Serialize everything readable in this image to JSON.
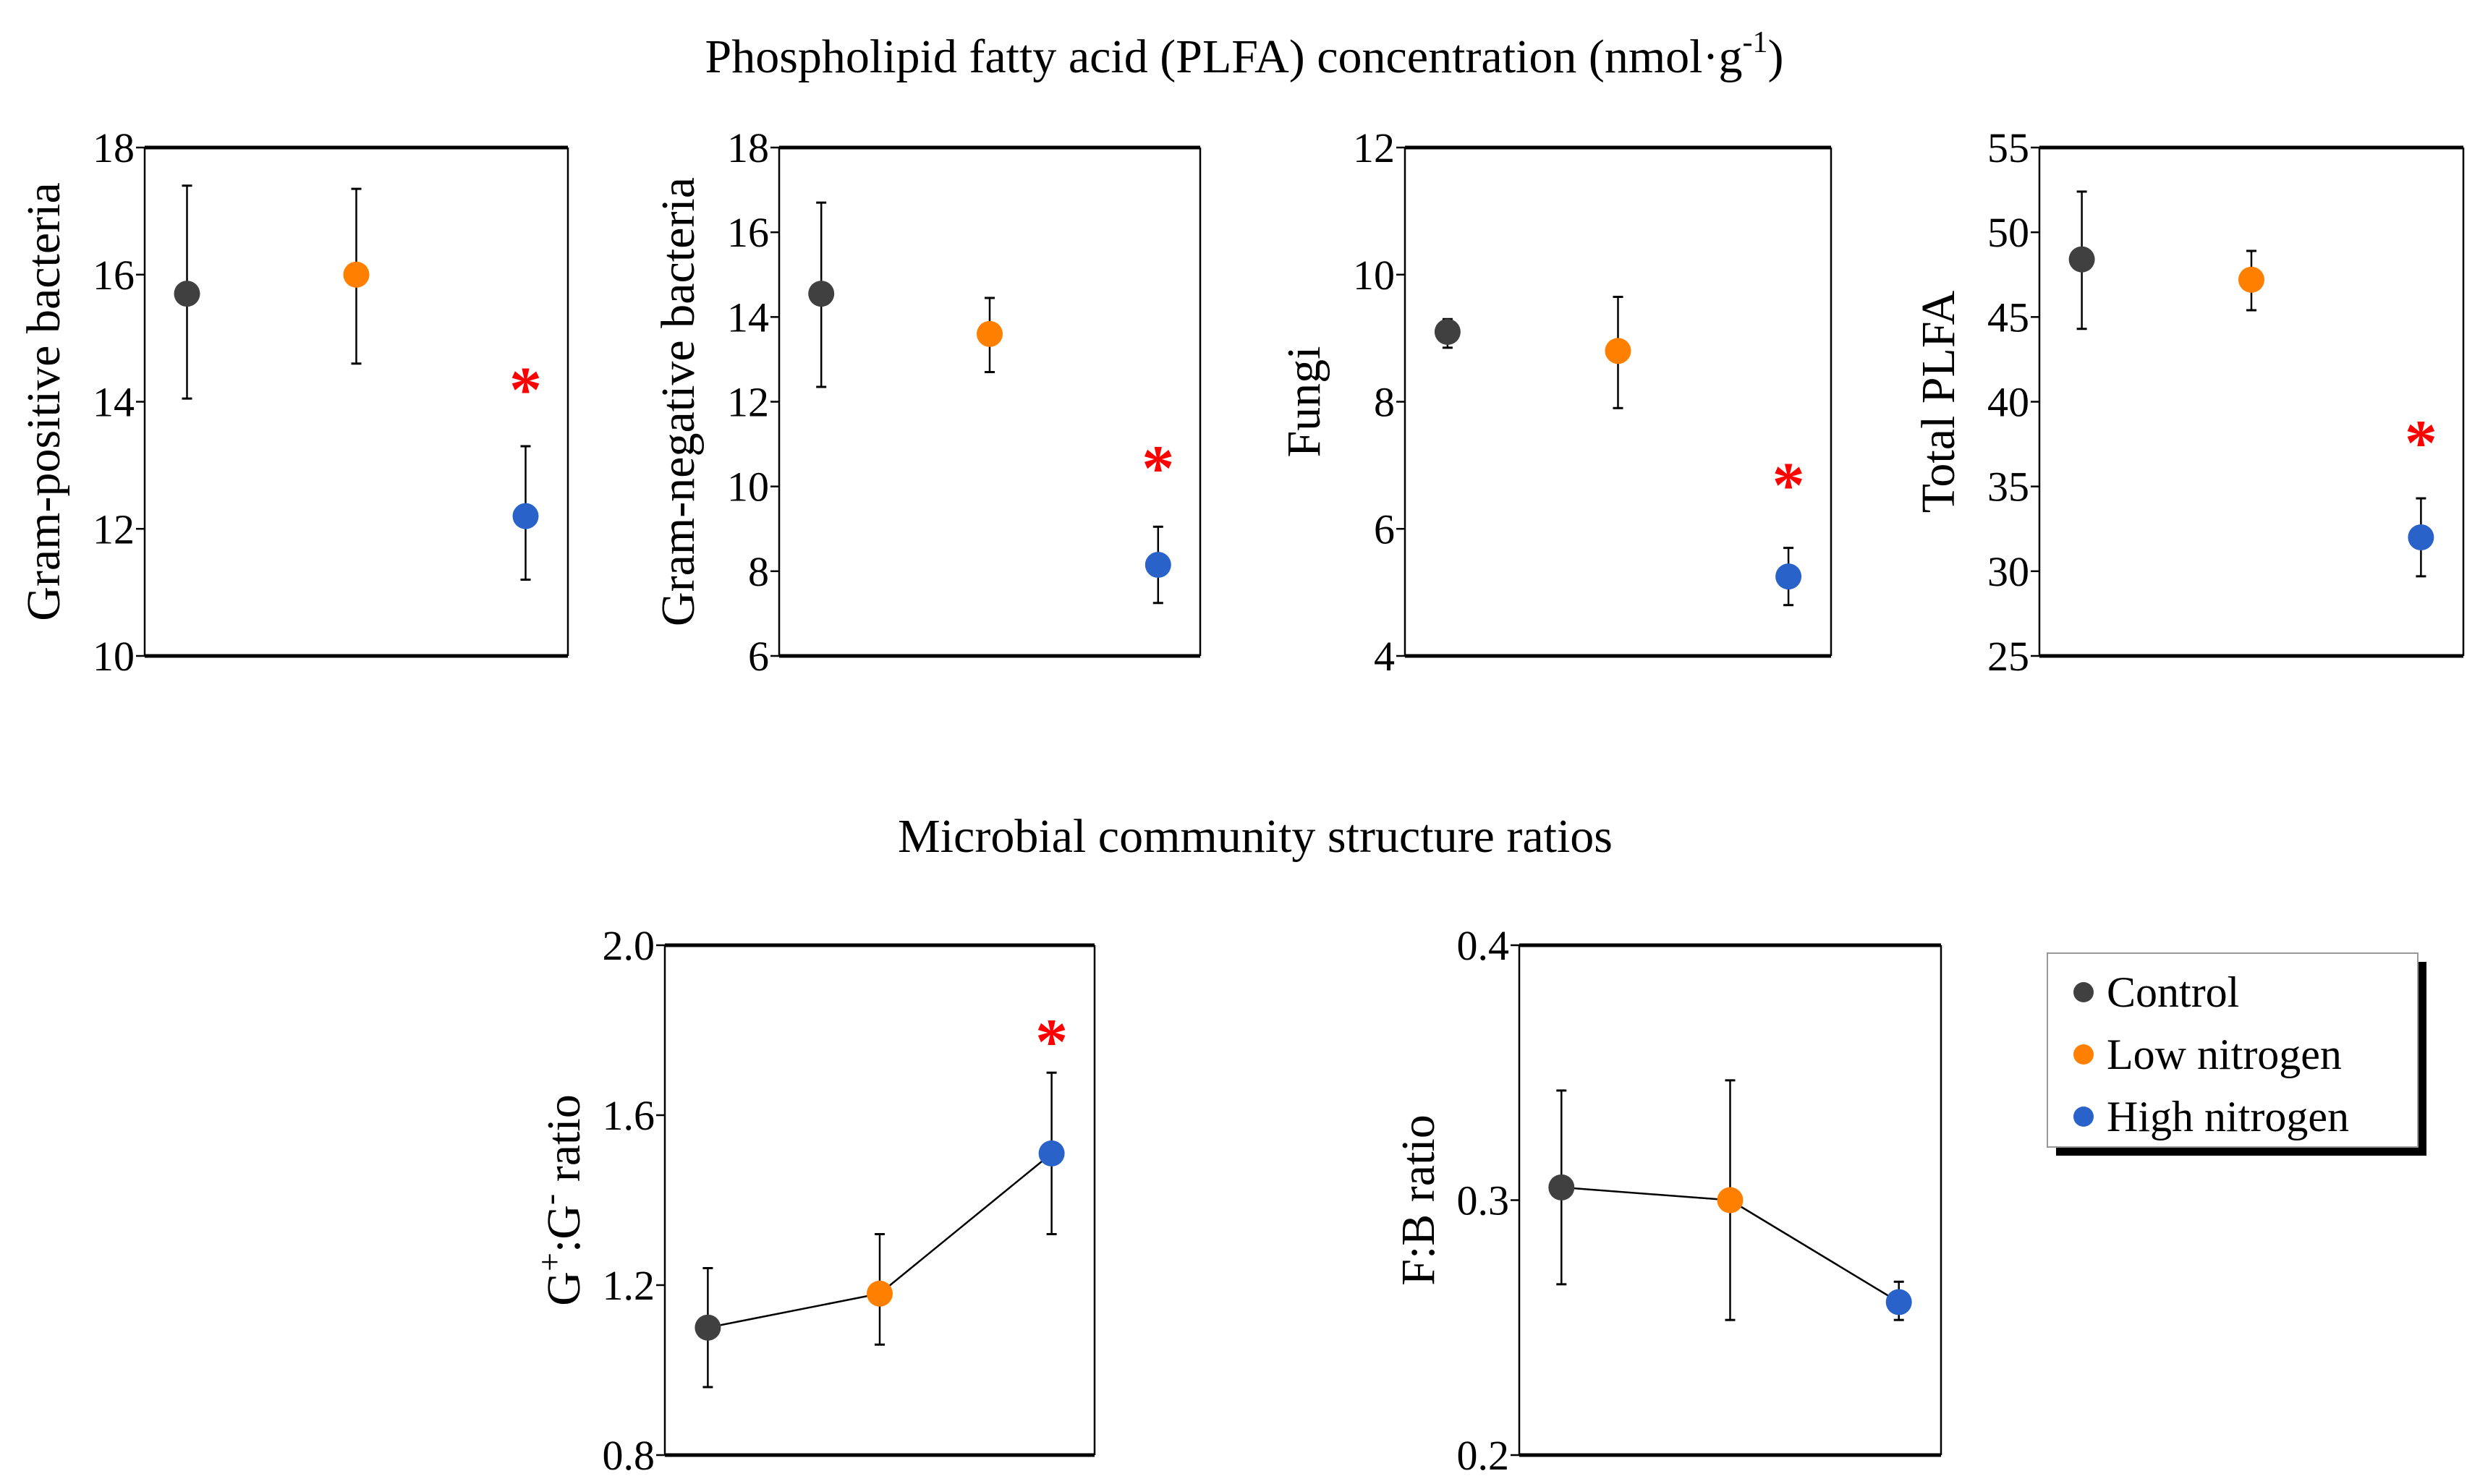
{
  "titles": {
    "top_main": "Phospholipid fatty acid (PLFA) concentration (nmol·g",
    "top_sup": "-1",
    "top_end": ")",
    "bottom": "Microbial community structure ratios"
  },
  "colors": {
    "Control": "#404040",
    "Low nitrogen": "#ff8000",
    "High nitrogen": "#2962c8",
    "significance": "#ff0000"
  },
  "legend": {
    "entries": [
      "Control",
      "Low nitrogen",
      "High nitrogen"
    ]
  },
  "chart_data": [
    {
      "type": "scatter",
      "ylabel": "Gram-positive bacteria",
      "ylim": [
        10,
        18
      ],
      "yticks": [
        "10",
        "12",
        "14",
        "16",
        "18"
      ],
      "groups": [
        "Control",
        "Low nitrogen",
        "High nitrogen"
      ],
      "values": [
        15.7,
        16.0,
        12.2
      ],
      "err_low": [
        14.05,
        14.6,
        11.2
      ],
      "err_high": [
        17.4,
        17.35,
        13.3
      ],
      "significant": [
        false,
        false,
        true
      ],
      "star_y": 14.3,
      "connected": false,
      "star": "*"
    },
    {
      "type": "scatter",
      "ylabel": "Gram-negative bacteria",
      "ylim": [
        6,
        18
      ],
      "yticks": [
        "6",
        "8",
        "10",
        "12",
        "14",
        "16",
        "18"
      ],
      "groups": [
        "Control",
        "Low nitrogen",
        "High nitrogen"
      ],
      "values": [
        14.55,
        13.6,
        8.15
      ],
      "err_low": [
        12.35,
        12.7,
        7.25
      ],
      "err_high": [
        16.7,
        14.45,
        9.05
      ],
      "significant": [
        false,
        false,
        true
      ],
      "star_y": 10.6,
      "connected": false,
      "star": "*"
    },
    {
      "type": "scatter",
      "ylabel": "Fungi",
      "ylim": [
        4,
        12
      ],
      "yticks": [
        "4",
        "6",
        "8",
        "10",
        "12"
      ],
      "groups": [
        "Control",
        "Low nitrogen",
        "High nitrogen"
      ],
      "values": [
        9.1,
        8.8,
        5.25
      ],
      "err_low": [
        8.85,
        7.9,
        4.8
      ],
      "err_high": [
        9.3,
        9.65,
        5.7
      ],
      "significant": [
        false,
        false,
        true
      ],
      "star_y": 6.8,
      "connected": false,
      "star": "*"
    },
    {
      "type": "scatter",
      "ylabel": "Total PLFA",
      "ylim": [
        25,
        55
      ],
      "yticks": [
        "25",
        "30",
        "35",
        "40",
        "45",
        "50",
        "55"
      ],
      "groups": [
        "Control",
        "Low nitrogen",
        "High nitrogen"
      ],
      "values": [
        48.4,
        47.2,
        32.0
      ],
      "err_low": [
        44.3,
        45.4,
        29.7
      ],
      "err_high": [
        52.4,
        48.9,
        34.3
      ],
      "significant": [
        false,
        false,
        true
      ],
      "star_y": 38.0,
      "connected": false,
      "star": "*"
    },
    {
      "type": "line",
      "ylabel_parts": [
        "G",
        "+",
        ":G",
        "-",
        " ratio"
      ],
      "ylim": [
        0.8,
        2.0
      ],
      "yticks": [
        "0.8",
        "1.2",
        "1.6",
        "2.0"
      ],
      "groups": [
        "Control",
        "Low nitrogen",
        "High nitrogen"
      ],
      "values": [
        1.1,
        1.18,
        1.51
      ],
      "err_low": [
        0.96,
        1.06,
        1.32
      ],
      "err_high": [
        1.24,
        1.32,
        1.7
      ],
      "significant": [
        false,
        false,
        true
      ],
      "star_y": 1.79,
      "connected": true,
      "star": "*"
    },
    {
      "type": "line",
      "ylabel": "F:B ratio",
      "ylim": [
        0.2,
        0.4
      ],
      "yticks": [
        "0.2",
        "0.3",
        "0.4"
      ],
      "groups": [
        "Control",
        "Low nitrogen",
        "High nitrogen"
      ],
      "values": [
        0.305,
        0.3,
        0.26
      ],
      "err_low": [
        0.267,
        0.253,
        0.253
      ],
      "err_high": [
        0.343,
        0.347,
        0.268
      ],
      "significant": [
        false,
        false,
        false
      ],
      "connected": true
    }
  ]
}
